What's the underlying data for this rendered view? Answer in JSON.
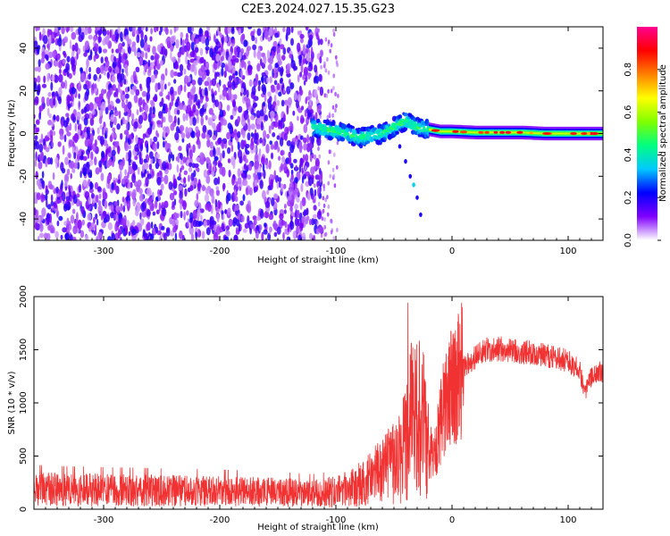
{
  "title": "C2E3.2024.027.15.35.G23",
  "chart_data": [
    {
      "type": "heatmap",
      "xlabel": "Height of straight line (km)",
      "ylabel": "Frequency (Hz)",
      "xlim": [
        -360,
        130
      ],
      "ylim": [
        -50,
        50
      ],
      "xticks": [
        -300,
        -200,
        -100,
        0,
        100
      ],
      "yticks": [
        -40,
        -20,
        0,
        20,
        40
      ],
      "colorbar": {
        "label": "Normalized spectral amplitude",
        "range": [
          0,
          1
        ],
        "ticks": [
          "0.0",
          "0.2",
          "0.4",
          "0.6",
          "0.8"
        ],
        "tick_values": [
          0,
          0.2,
          0.4,
          0.6,
          0.8
        ],
        "colors": [
          "#ffffff",
          "#8000ff",
          "#0000ff",
          "#00c8ff",
          "#00ff80",
          "#80ff00",
          "#ffff00",
          "#ff8000",
          "#ff0000",
          "#ff0090"
        ]
      },
      "regions": [
        {
          "name": "noise",
          "x": [
            -360,
            -112
          ],
          "freq": [
            -50,
            50
          ],
          "amplitude": 0.15
        },
        {
          "name": "signal-onset",
          "x": [
            -120,
            -20
          ],
          "freq": [
            -10,
            8
          ],
          "amplitude": 0.4
        },
        {
          "name": "tone",
          "x": [
            -20,
            130
          ],
          "freq": [
            -2,
            2
          ],
          "amplitude": 0.6
        }
      ],
      "ridge": {
        "x": [
          -120,
          -110,
          -100,
          -90,
          -80,
          -70,
          -60,
          -50,
          -40,
          -30,
          -20,
          -10,
          0,
          20,
          40,
          60,
          80,
          100,
          130
        ],
        "freq": [
          3,
          2,
          1,
          0,
          -2,
          -1,
          0,
          3,
          6,
          3,
          2,
          1,
          1,
          0.5,
          0.5,
          0.5,
          0,
          0,
          0
        ]
      },
      "tail": {
        "x": [
          -45,
          -40,
          -36,
          -33,
          -30,
          -27
        ],
        "freq": [
          -6,
          -13,
          -20,
          -24,
          -30,
          -38
        ]
      }
    },
    {
      "type": "line",
      "xlabel": "Height of straight line (km)",
      "ylabel": "SNR (10 * v/v)",
      "xlim": [
        -360,
        130
      ],
      "ylim": [
        0,
        2000
      ],
      "xticks": [
        -300,
        -200,
        -100,
        0,
        100
      ],
      "yticks": [
        0,
        500,
        1000,
        1500,
        2000
      ],
      "color": "#f03232",
      "series": [
        {
          "x": [
            -360,
            -340,
            -300,
            -250,
            -200,
            -150,
            -120,
            -100,
            -90,
            -80,
            -70,
            -60,
            -50,
            -45,
            -40,
            -35,
            -30,
            -25,
            -20,
            -15,
            -10,
            -5,
            0,
            10,
            20,
            30,
            40,
            50,
            60,
            70,
            80,
            90,
            100,
            105,
            110,
            115,
            120,
            125,
            130
          ],
          "y": [
            190,
            185,
            180,
            175,
            170,
            160,
            150,
            165,
            190,
            230,
            290,
            360,
            430,
            520,
            650,
            850,
            1000,
            800,
            550,
            500,
            800,
            1050,
            1150,
            1330,
            1430,
            1500,
            1510,
            1500,
            1480,
            1470,
            1450,
            1420,
            1400,
            1350,
            1300,
            1100,
            1250,
            1280,
            1300
          ]
        }
      ]
    }
  ]
}
